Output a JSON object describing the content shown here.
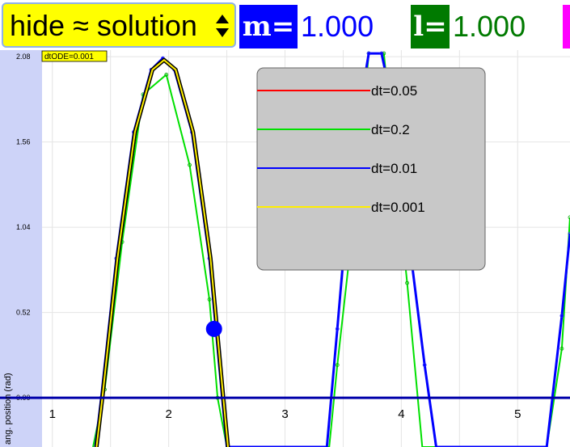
{
  "controls": {
    "solution_select": {
      "selected": "hide ≈ solution"
    },
    "mass": {
      "symbol": "m=",
      "value": "1.000",
      "label_color": "#0000ff",
      "value_color": "#0000ff"
    },
    "length": {
      "symbol": "l=",
      "value": "1.000",
      "label_color": "#007a00",
      "value_color": "#007a00"
    }
  },
  "badge": "dtODE=0.001",
  "chart_data": {
    "type": "line",
    "ylabel": "ang. position (rad)",
    "xlabel": "",
    "x_ticks": [
      "1",
      "2",
      "3",
      "4",
      "5"
    ],
    "y_ticks": [
      "0.00",
      "0.52",
      "1.04",
      "1.56",
      "2.08"
    ],
    "xlim": [
      0.55,
      5.45
    ],
    "ylim": [
      -0.3,
      2.12
    ],
    "grid": true,
    "legend_position": "top-center",
    "marker": {
      "x": 2.39,
      "y": 0.42,
      "color": "#0000ff"
    },
    "series": [
      {
        "name": "dt=0.05",
        "color": "#ff0000",
        "points": [
          [
            1.42,
            0
          ],
          [
            1.55,
            0.85
          ],
          [
            1.7,
            1.62
          ],
          [
            1.85,
            2.0
          ],
          [
            1.95,
            2.07
          ],
          [
            2.05,
            2.0
          ],
          [
            2.2,
            1.62
          ],
          [
            2.35,
            0.85
          ],
          [
            2.46,
            0
          ],
          [
            2.5,
            -0.3
          ],
          [
            3.36,
            -0.3
          ],
          [
            3.45,
            0.42
          ],
          [
            3.55,
            1.25
          ],
          [
            3.65,
            1.8
          ],
          [
            3.72,
            2.1
          ],
          [
            3.83,
            2.1
          ],
          [
            3.92,
            1.8
          ],
          [
            4.05,
            1.05
          ],
          [
            4.2,
            0.2
          ],
          [
            4.3,
            -0.3
          ],
          [
            5.25,
            -0.3
          ],
          [
            5.38,
            0.5
          ],
          [
            5.45,
            1.0
          ]
        ]
      },
      {
        "name": "dt=0.2",
        "color": "#00e000",
        "points": [
          [
            1.35,
            -0.3
          ],
          [
            1.45,
            0.05
          ],
          [
            1.6,
            0.95
          ],
          [
            1.78,
            1.85
          ],
          [
            1.98,
            1.97
          ],
          [
            2.18,
            1.42
          ],
          [
            2.35,
            0.6
          ],
          [
            2.42,
            0
          ],
          [
            2.5,
            -0.3
          ],
          [
            3.38,
            -0.3
          ],
          [
            3.45,
            0.2
          ],
          [
            3.6,
            1.15
          ],
          [
            3.72,
            2.1
          ],
          [
            3.85,
            2.1
          ],
          [
            4.05,
            0.7
          ],
          [
            4.18,
            -0.3
          ],
          [
            5.25,
            -0.3
          ],
          [
            5.38,
            0.3
          ],
          [
            5.45,
            1.1
          ]
        ]
      },
      {
        "name": "dt=0.01",
        "color": "#0000ff",
        "points": [
          [
            1.37,
            -0.3
          ],
          [
            1.42,
            0
          ],
          [
            1.55,
            0.85
          ],
          [
            1.7,
            1.62
          ],
          [
            1.85,
            2.0
          ],
          [
            1.95,
            2.07
          ],
          [
            2.05,
            2.0
          ],
          [
            2.2,
            1.62
          ],
          [
            2.35,
            0.85
          ],
          [
            2.46,
            0
          ],
          [
            2.5,
            -0.3
          ],
          [
            3.36,
            -0.3
          ],
          [
            3.45,
            0.42
          ],
          [
            3.55,
            1.25
          ],
          [
            3.65,
            1.8
          ],
          [
            3.72,
            2.1
          ],
          [
            3.83,
            2.1
          ],
          [
            3.92,
            1.8
          ],
          [
            4.05,
            1.05
          ],
          [
            4.2,
            0.2
          ],
          [
            4.3,
            -0.3
          ],
          [
            5.25,
            -0.3
          ],
          [
            5.38,
            0.5
          ],
          [
            5.45,
            1.0
          ]
        ]
      },
      {
        "name": "dt=0.001",
        "color": "#ffee00",
        "points": [
          [
            1.38,
            -0.3
          ],
          [
            1.43,
            0
          ],
          [
            1.56,
            0.85
          ],
          [
            1.71,
            1.62
          ],
          [
            1.86,
            2.0
          ],
          [
            1.96,
            2.06
          ],
          [
            2.06,
            2.0
          ],
          [
            2.21,
            1.62
          ],
          [
            2.36,
            0.85
          ],
          [
            2.47,
            0
          ],
          [
            2.51,
            -0.3
          ]
        ]
      }
    ]
  }
}
